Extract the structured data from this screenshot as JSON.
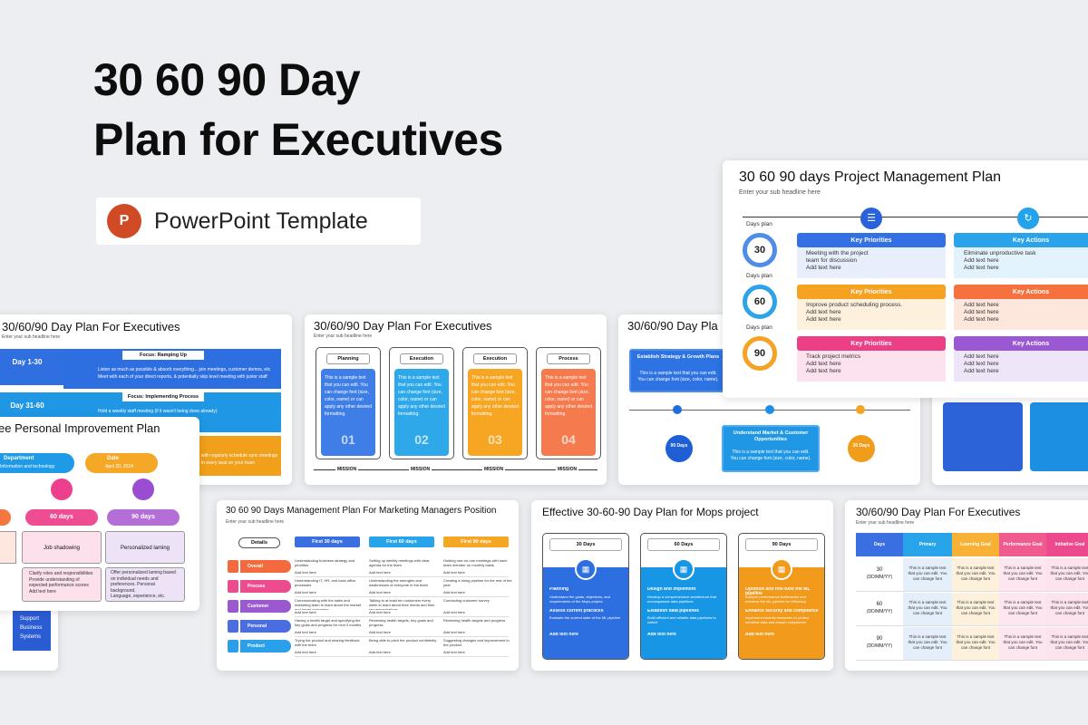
{
  "hero": {
    "title_line1": "30 60 90 Day",
    "title_line2": "Plan for Executives",
    "badge_icon": "P",
    "badge_label": "PowerPoint Template"
  },
  "slide_top_right": {
    "title": "30 60 90 days Project Management Plan",
    "subtitle": "Enter your sub headline here",
    "days_label": "Days plan",
    "days": [
      "30",
      "60",
      "90"
    ],
    "key_priorities": "Key Priorities",
    "key_actions": "Key Actions",
    "rows": [
      {
        "priorities": [
          "Meeting with the project",
          "team for discussion",
          "Add text here"
        ],
        "actions": [
          "Eliminate unproductive task",
          "Add text here",
          "Add text here"
        ]
      },
      {
        "priorities": [
          "Improve product scheduling process.",
          "Add text here",
          "Add text here"
        ],
        "actions": [
          "Add text here",
          "Add text here",
          "Add text here"
        ]
      },
      {
        "priorities": [
          "Track project metrics",
          "Add text here",
          "Add text here"
        ],
        "actions": [
          "Add text here",
          "Add text here",
          "Add text here"
        ]
      }
    ]
  },
  "slide_a": {
    "title": "30/60/90 Day Plan For Executives",
    "subtitle": "Enter your sub headline here",
    "focus1": "Focus: Ramping Up",
    "focus2": "Focus: Implementing Process",
    "day1": "Day 1-30",
    "day2": "Day 31-60",
    "b1": "Listen as much as possible & absorb everything... join meetings, customer demos, etc",
    "b2": "Meet with each of your direct reports, & potentially skip level meeting with junior staff",
    "b3": "Hold a weekly staff meeting (if it wasn't being done already)",
    "b4": "with regularly schedule sync meetings",
    "b5": "in every seat on your team"
  },
  "slide_b": {
    "title": "30/60/90 Day Plan For Executives",
    "subtitle": "Enter your sub headline here",
    "cols": [
      {
        "label": "Planning",
        "num": "01",
        "color": "#3f7ee6"
      },
      {
        "label": "Execution",
        "num": "02",
        "color": "#2fa8ea"
      },
      {
        "label": "Execution",
        "num": "03",
        "color": "#f6a623"
      },
      {
        "label": "Process",
        "num": "04",
        "color": "#f57a4e"
      }
    ],
    "body": "This is a sample text that you can edit. You can change font (size, color, name) or can apply any other desired formatting.",
    "mission": "MISSION"
  },
  "slide_c": {
    "title": "30/60/90 Day Pla",
    "box1_title": "Establish Strategy & Growth Plans",
    "box1_body": "This is a sample text that you can edit. You can change font (size, color, name).",
    "box2_title": "Understand Market & Customer Opportunities",
    "box2_body": "This is a sample text that you can edit. You can change font (size, color, name).",
    "d90": "90 Days",
    "d30": "30 Days"
  },
  "slide_d": {
    "title": "ee Personal Improvement Plan",
    "dept_label": "Department",
    "dept_value": "Information and technology",
    "date_label": "Date",
    "date_value": "April 20, 2024",
    "p60": "60 days",
    "p90": "90 days",
    "c60": "Job shadowing",
    "c90": "Personalized laming",
    "l60": [
      "Clarify roles and responsibilities",
      "Provide understanding of",
      "expected performance scores",
      "Add text here"
    ],
    "l90": [
      "Offer personalized laming based",
      "on individual needs and",
      "preferences. Personal",
      "background,",
      "Language, experience, etc."
    ]
  },
  "slide_e_sidebar": {
    "lines": [
      "Support",
      "Business",
      "Systems"
    ]
  },
  "slide_f": {
    "title": "30 60 90 Days Management Plan For Marketing Managers Position",
    "subtitle": "Enter your sub headline here",
    "details": "Details",
    "heads": [
      "First 30 days",
      "First 60 days",
      "First 90 days"
    ],
    "rows": [
      "Overall",
      "Process",
      "Customer",
      "Personal",
      "Product"
    ],
    "row_colors": [
      "#f26a3d",
      "#ec4c8e",
      "#9b59d0",
      "#4a6ee0",
      "#2aa0ea"
    ],
    "cells": [
      [
        "Understanding business strategy and priorities",
        "Setting up weekly meetings with clear agenda for the team",
        "Holding one-on-one meetings with each team member on monthly basis"
      ],
      [
        "Understanding IT, HR, and back office processes",
        "Understanding the strengths and weaknesses of everyone in the team",
        "Creating a hiring pipeline for the rest of the year"
      ],
      [
        "Communicating with the sales and marketing team to learn about the market and target customers",
        "Talking to at least ten customers every week to learn about their needs and their recommendations",
        "Conducting customer survey"
      ],
      [
        "Having a health target and specifying the key goals and progress for next 3 months",
        "Reviewing health targets, key goals and progress",
        "Reviewing health targets and progress"
      ],
      [
        "Trying the product and sharing feedback with the team",
        "Being able to pitch the product confidently",
        "Suggesting changes and improvement to the product"
      ]
    ],
    "add": "Add text here"
  },
  "slide_g": {
    "title": "Effective 30-60-90 Day Plan for Mops project",
    "cols": [
      {
        "head": "30 Days",
        "color": "#2d6fe0",
        "items": [
          "Planning",
          "Understand the goals, objectives, and requirements of the Mops project.",
          "Assess current practices",
          "Evaluate the current state of the ML pipeline",
          "Add text here"
        ]
      },
      {
        "head": "60 Days",
        "color": "#1896e6",
        "items": [
          "Design and implement",
          "Develop a comprehensive architecture that encompasses data pipelines",
          "Establish data pipelines",
          "Build efficient and reliable data pipelines to collect",
          "Add text here"
        ]
      },
      {
        "head": "90 Days",
        "color": "#f19a1b",
        "items": [
          "Optimize and fine-tune the ML pipeline",
          "Analyze performance bottlenecks and enhance the ML pipeline for efficiency",
          "Enhance security and compliance",
          "Implement security measures to protect sensitive data and ensure compliance",
          "Add text here"
        ]
      }
    ]
  },
  "slide_h": {
    "title": "30/60/90 Day Plan For Executives",
    "subtitle": "Enter your sub headline here",
    "heads": [
      "Days",
      "Primary",
      "Learning Goal",
      "Performance Goal",
      "Initiative Goal"
    ],
    "head_colors": [
      "#3a6fe2",
      "#27a4ea",
      "#f7b235",
      "#ef5b8f",
      "#ec4a8c"
    ],
    "rows": [
      {
        "d": "30",
        "f": "(DD/MM/YY)"
      },
      {
        "d": "60",
        "f": "(DD/MM/YY)"
      },
      {
        "d": "90",
        "f": "(DD/MM/YY)"
      }
    ],
    "cell": "This is a sample text that you can edit. You can change font"
  }
}
